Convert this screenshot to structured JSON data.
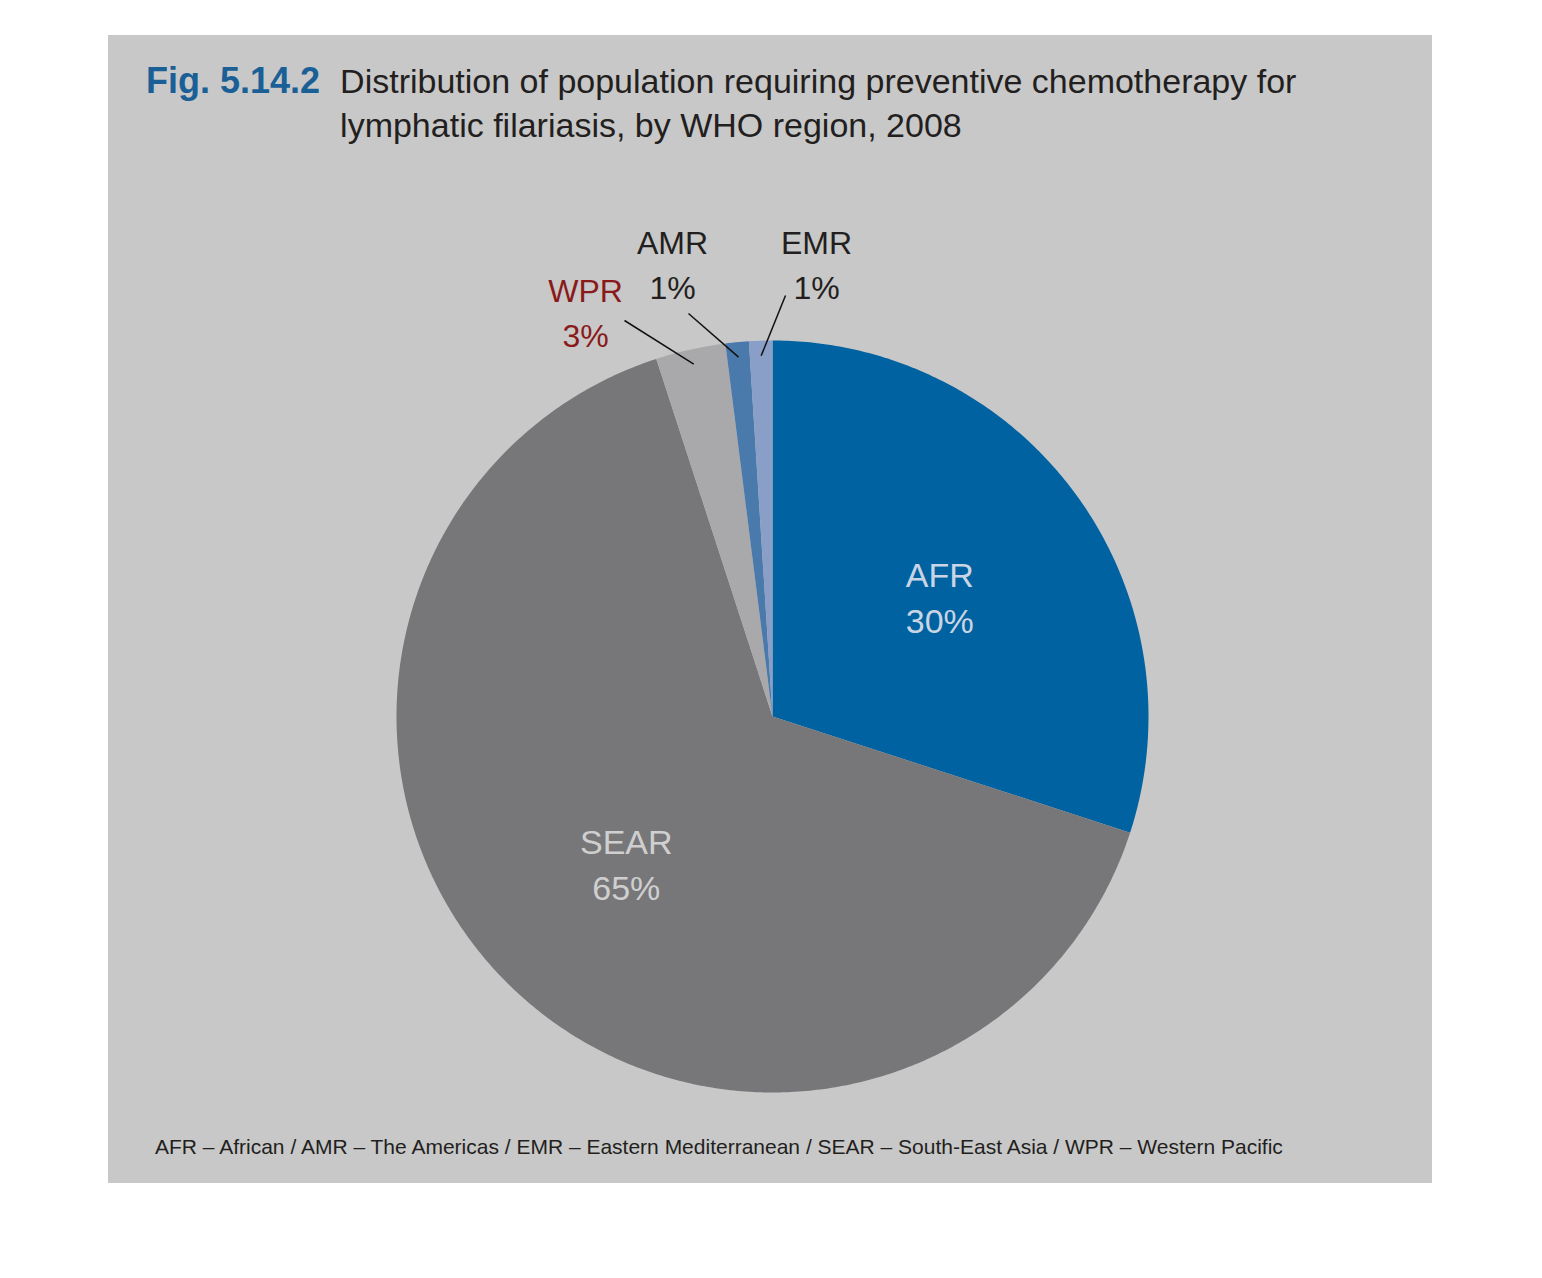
{
  "chart_data": {
    "type": "pie",
    "figure_label": "Fig. 5.14.2",
    "title": "Distribution of population requiring preventive chemotherapy for lymphatic filariasis, by WHO region, 2008",
    "categories": [
      "AFR",
      "SEAR",
      "WPR",
      "AMR",
      "EMR"
    ],
    "values": [
      30,
      65,
      3,
      1,
      1
    ],
    "value_labels": [
      "30%",
      "65%",
      "3%",
      "1%",
      "1%"
    ],
    "colors": [
      "#0062a0",
      "#77777a",
      "#a9a9ab",
      "#4a7aab",
      "#8a9fc7"
    ],
    "data_labels": true,
    "caption": "AFR – African / AMR – The Americas / EMR – Eastern Mediterranean / SEAR – South-East Asia / WPR – Western Pacific"
  }
}
